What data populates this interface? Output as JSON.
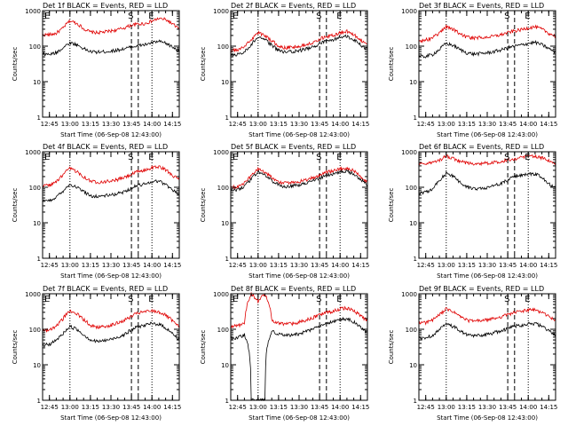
{
  "colors": {
    "events": "#000000",
    "lld": "#e00000",
    "axis": "#000000",
    "background": "#ffffff"
  },
  "chart_data": [
    {
      "type": "line",
      "title": "Det 1f BLACK = Events, RED = LLD",
      "xlabel": "Start Time (06-Sep-08 12:43:00)",
      "ylabel": "Counts/sec",
      "xticks": [
        "12:45",
        "13:00",
        "13:15",
        "13:30",
        "13:45",
        "14:00",
        "14:15"
      ],
      "yticks": [
        "1",
        "10",
        "100",
        "1000"
      ],
      "xlim_min": [
        -3,
        97
      ],
      "ylim": [
        1,
        1000
      ],
      "yscale": "log",
      "markers": [
        "E",
        "S",
        "E"
      ],
      "series": [
        {
          "name": "LLD",
          "x_min": [
            -3,
            2,
            7,
            12,
            17,
            22,
            27,
            32,
            37,
            42,
            47,
            52,
            57,
            62,
            67,
            72,
            77,
            82,
            87,
            92,
            97
          ],
          "values": [
            210,
            210,
            230,
            320,
            520,
            440,
            310,
            250,
            240,
            250,
            270,
            290,
            330,
            390,
            420,
            430,
            510,
            600,
            560,
            420,
            300
          ]
        },
        {
          "name": "Events",
          "x_min": [
            -3,
            2,
            7,
            12,
            17,
            22,
            27,
            32,
            37,
            42,
            47,
            52,
            57,
            62,
            67,
            72,
            77,
            82,
            87,
            92,
            97
          ],
          "values": [
            60,
            58,
            65,
            90,
            125,
            110,
            85,
            70,
            68,
            70,
            72,
            78,
            85,
            95,
            105,
            110,
            125,
            135,
            120,
            95,
            70
          ]
        }
      ]
    },
    {
      "type": "line",
      "title": "Det 2f BLACK = Events, RED = LLD",
      "xlabel": "Start Time (06-Sep-08 12:43:00)",
      "ylabel": "Counts/sec",
      "xticks": [
        "12:45",
        "13:00",
        "13:15",
        "13:30",
        "13:45",
        "14:00",
        "14:15"
      ],
      "yticks": [
        "1",
        "10",
        "100",
        "1000"
      ],
      "xlim_min": [
        -3,
        97
      ],
      "ylim": [
        1,
        1000
      ],
      "yscale": "log",
      "markers": [
        "E",
        "S",
        "E"
      ],
      "series": [
        {
          "name": "LLD",
          "x_min": [
            -3,
            2,
            7,
            12,
            17,
            22,
            27,
            32,
            37,
            42,
            47,
            52,
            57,
            62,
            67,
            72,
            77,
            82,
            87,
            92,
            97
          ],
          "values": [
            75,
            78,
            95,
            150,
            240,
            200,
            140,
            100,
            90,
            95,
            100,
            110,
            130,
            160,
            190,
            200,
            240,
            260,
            210,
            150,
            110
          ]
        },
        {
          "name": "Events",
          "x_min": [
            -3,
            2,
            7,
            12,
            17,
            22,
            27,
            32,
            37,
            42,
            47,
            52,
            57,
            62,
            67,
            72,
            77,
            82,
            87,
            92,
            97
          ],
          "values": [
            55,
            58,
            70,
            110,
            180,
            150,
            105,
            75,
            68,
            70,
            75,
            82,
            95,
            115,
            140,
            150,
            180,
            190,
            150,
            110,
            80
          ]
        }
      ]
    },
    {
      "type": "line",
      "title": "Det 3f BLACK = Events, RED = LLD",
      "xlabel": "Start Time (06-Sep-08 12:43:00)",
      "ylabel": "Counts/sec",
      "xticks": [
        "12:45",
        "13:00",
        "13:15",
        "13:30",
        "13:45",
        "14:00",
        "14:15"
      ],
      "yticks": [
        "1",
        "10",
        "100",
        "1000"
      ],
      "xlim_min": [
        -3,
        97
      ],
      "ylim": [
        1,
        1000
      ],
      "yscale": "log",
      "markers": [
        "S",
        "E"
      ],
      "series": [
        {
          "name": "LLD",
          "x_min": [
            -3,
            2,
            7,
            12,
            17,
            22,
            27,
            32,
            37,
            42,
            47,
            52,
            57,
            62,
            67,
            72,
            77,
            82,
            87,
            92,
            97
          ],
          "values": [
            140,
            150,
            170,
            230,
            360,
            300,
            220,
            180,
            170,
            175,
            180,
            190,
            210,
            240,
            270,
            290,
            330,
            350,
            300,
            230,
            190
          ]
        },
        {
          "name": "Events",
          "x_min": [
            -3,
            2,
            7,
            12,
            17,
            22,
            27,
            32,
            37,
            42,
            47,
            52,
            57,
            62,
            67,
            72,
            77,
            82,
            87,
            92,
            97
          ],
          "values": [
            50,
            52,
            58,
            80,
            120,
            105,
            80,
            65,
            60,
            62,
            65,
            70,
            78,
            90,
            100,
            108,
            120,
            128,
            110,
            85,
            68
          ]
        }
      ]
    },
    {
      "type": "line",
      "title": "Det 4f BLACK = Events, RED = LLD",
      "xlabel": "Start Time (06-Sep-08 12:43:00)",
      "ylabel": "Counts/sec",
      "xticks": [
        "12:45",
        "13:00",
        "13:15",
        "13:30",
        "13:45",
        "14:00",
        "14:15"
      ],
      "yticks": [
        "1",
        "10",
        "100",
        "1000"
      ],
      "xlim_min": [
        -3,
        97
      ],
      "ylim": [
        1,
        1000
      ],
      "yscale": "log",
      "markers": [
        "E",
        "S",
        "E"
      ],
      "series": [
        {
          "name": "LLD",
          "x_min": [
            -3,
            2,
            7,
            12,
            17,
            22,
            27,
            32,
            37,
            42,
            47,
            52,
            57,
            62,
            67,
            72,
            77,
            82,
            87,
            92,
            97
          ],
          "values": [
            110,
            115,
            140,
            220,
            340,
            280,
            200,
            150,
            140,
            145,
            150,
            165,
            190,
            230,
            280,
            300,
            360,
            380,
            310,
            220,
            160
          ]
        },
        {
          "name": "Events",
          "x_min": [
            -3,
            2,
            7,
            12,
            17,
            22,
            27,
            32,
            37,
            42,
            47,
            52,
            57,
            62,
            67,
            72,
            77,
            82,
            87,
            92,
            97
          ],
          "values": [
            40,
            42,
            52,
            80,
            120,
            100,
            75,
            58,
            55,
            58,
            60,
            66,
            76,
            95,
            115,
            125,
            145,
            150,
            120,
            85,
            62
          ]
        }
      ]
    },
    {
      "type": "line",
      "title": "Det 5f BLACK = Events, RED = LLD",
      "xlabel": "Start Time (06-Sep-08 12:43:00)",
      "ylabel": "Counts/sec",
      "xticks": [
        "12:45",
        "13:00",
        "13:15",
        "13:30",
        "13:45",
        "14:00",
        "14:15"
      ],
      "yticks": [
        "1",
        "10",
        "100",
        "1000"
      ],
      "xlim_min": [
        -3,
        97
      ],
      "ylim": [
        1,
        1000
      ],
      "yscale": "log",
      "markers": [
        "E",
        "S",
        "E"
      ],
      "series": [
        {
          "name": "LLD",
          "x_min": [
            -3,
            2,
            7,
            12,
            17,
            22,
            27,
            32,
            37,
            42,
            47,
            52,
            57,
            62,
            67,
            72,
            77,
            82,
            87,
            92,
            97
          ],
          "values": [
            100,
            105,
            130,
            200,
            330,
            270,
            190,
            140,
            130,
            135,
            145,
            160,
            185,
            220,
            270,
            290,
            330,
            350,
            290,
            200,
            140
          ]
        },
        {
          "name": "Events",
          "x_min": [
            -3,
            2,
            7,
            12,
            17,
            22,
            27,
            32,
            37,
            42,
            47,
            52,
            57,
            62,
            67,
            72,
            77,
            82,
            87,
            92,
            97
          ],
          "values": [
            80,
            84,
            105,
            165,
            270,
            220,
            155,
            115,
            105,
            110,
            118,
            130,
            150,
            180,
            220,
            240,
            270,
            285,
            235,
            165,
            115
          ]
        }
      ]
    },
    {
      "type": "line",
      "title": "Det 6f BLACK = Events, RED = LLD",
      "xlabel": "Start Time (06-Sep-08 12:43:00)",
      "ylabel": "Counts/sec",
      "xticks": [
        "12:45",
        "13:00",
        "13:15",
        "13:30",
        "13:45",
        "14:00",
        "14:15"
      ],
      "yticks": [
        "1",
        "10",
        "100",
        "1000"
      ],
      "xlim_min": [
        -3,
        97
      ],
      "ylim": [
        1,
        1000
      ],
      "yscale": "log",
      "markers": [
        "S",
        "E"
      ],
      "series": [
        {
          "name": "LLD",
          "x_min": [
            -3,
            2,
            7,
            12,
            17,
            22,
            27,
            32,
            37,
            42,
            47,
            52,
            57,
            62,
            67,
            72,
            77,
            82,
            87,
            92,
            97
          ],
          "values": [
            470,
            470,
            490,
            560,
            760,
            650,
            540,
            480,
            470,
            470,
            480,
            500,
            540,
            590,
            640,
            680,
            740,
            760,
            680,
            560,
            480
          ]
        },
        {
          "name": "Events",
          "x_min": [
            -3,
            2,
            7,
            12,
            17,
            22,
            27,
            32,
            37,
            42,
            47,
            52,
            57,
            62,
            67,
            72,
            77,
            82,
            87,
            92,
            97
          ],
          "values": [
            70,
            72,
            90,
            150,
            250,
            200,
            140,
            100,
            90,
            95,
            100,
            110,
            130,
            160,
            200,
            215,
            240,
            240,
            190,
            130,
            95
          ]
        }
      ]
    },
    {
      "type": "line",
      "title": "Det 7f BLACK = Events, RED = LLD",
      "xlabel": "Start Time (06-Sep-08 12:43:00)",
      "ylabel": "Counts/sec",
      "xticks": [
        "12:45",
        "13:00",
        "13:15",
        "13:30",
        "13:45",
        "14:00",
        "14:15"
      ],
      "yticks": [
        "1",
        "10",
        "100",
        "1000"
      ],
      "xlim_min": [
        -3,
        97
      ],
      "ylim": [
        1,
        1000
      ],
      "yscale": "log",
      "markers": [
        "E",
        "S",
        "E"
      ],
      "series": [
        {
          "name": "LLD",
          "x_min": [
            -3,
            2,
            7,
            12,
            17,
            22,
            27,
            32,
            37,
            42,
            47,
            52,
            57,
            62,
            67,
            72,
            77,
            82,
            87,
            92,
            97
          ],
          "values": [
            90,
            95,
            120,
            200,
            330,
            270,
            190,
            130,
            115,
            120,
            130,
            150,
            180,
            230,
            290,
            310,
            330,
            310,
            250,
            170,
            110
          ]
        },
        {
          "name": "Events",
          "x_min": [
            -3,
            2,
            7,
            12,
            17,
            22,
            27,
            32,
            37,
            42,
            47,
            52,
            57,
            62,
            67,
            72,
            77,
            82,
            87,
            92,
            97
          ],
          "values": [
            35,
            38,
            48,
            75,
            120,
            100,
            70,
            50,
            45,
            48,
            52,
            60,
            72,
            95,
            120,
            130,
            145,
            140,
            110,
            75,
            50
          ]
        }
      ]
    },
    {
      "type": "line",
      "title": "Det 8f BLACK = Events, RED = LLD",
      "xlabel": "Start Time (06-Sep-08 12:43:00)",
      "ylabel": "Counts/sec",
      "xticks": [
        "12:45",
        "13:00",
        "13:15",
        "13:30",
        "13:45",
        "14:00",
        "14:15"
      ],
      "yticks": [
        "1",
        "10",
        "100",
        "1000"
      ],
      "xlim_min": [
        -3,
        97
      ],
      "ylim": [
        1,
        1000
      ],
      "yscale": "log",
      "markers": [
        "E",
        "S",
        "E"
      ],
      "series": [
        {
          "name": "LLD",
          "x_min": [
            -3,
            2,
            7,
            12,
            17,
            22,
            27,
            32,
            37,
            42,
            47,
            52,
            57,
            62,
            67,
            72,
            77,
            82,
            87,
            92,
            97
          ],
          "values": [
            120,
            125,
            140,
            1000,
            600,
            1000,
            180,
            150,
            140,
            145,
            160,
            180,
            210,
            250,
            300,
            320,
            380,
            400,
            330,
            240,
            170
          ]
        },
        {
          "name": "Events",
          "x_min": [
            -3,
            2,
            7,
            12,
            17,
            22,
            27,
            32,
            37,
            42,
            47,
            52,
            57,
            62,
            67,
            72,
            77,
            82,
            87,
            92,
            97
          ],
          "values": [
            55,
            58,
            70,
            1,
            1,
            1,
            90,
            72,
            68,
            70,
            75,
            85,
            100,
            120,
            150,
            160,
            190,
            200,
            160,
            110,
            80
          ]
        }
      ]
    },
    {
      "type": "line",
      "title": "Det 9f BLACK = Events, RED = LLD",
      "xlabel": "Start Time (06-Sep-08 12:43:00)",
      "ylabel": "Counts/sec",
      "xticks": [
        "12:45",
        "13:00",
        "13:15",
        "13:30",
        "13:45",
        "14:00",
        "14:15"
      ],
      "yticks": [
        "1",
        "10",
        "100",
        "1000"
      ],
      "xlim_min": [
        -3,
        97
      ],
      "ylim": [
        1,
        1000
      ],
      "yscale": "log",
      "markers": [
        "S",
        "E"
      ],
      "series": [
        {
          "name": "LLD",
          "x_min": [
            -3,
            2,
            7,
            12,
            17,
            22,
            27,
            32,
            37,
            42,
            47,
            52,
            57,
            62,
            67,
            72,
            77,
            82,
            87,
            92,
            97
          ],
          "values": [
            150,
            155,
            180,
            250,
            370,
            310,
            230,
            180,
            170,
            175,
            185,
            200,
            225,
            260,
            300,
            320,
            350,
            350,
            300,
            230,
            180
          ]
        },
        {
          "name": "Events",
          "x_min": [
            -3,
            2,
            7,
            12,
            17,
            22,
            27,
            32,
            37,
            42,
            47,
            52,
            57,
            62,
            67,
            72,
            77,
            82,
            87,
            92,
            97
          ],
          "values": [
            55,
            58,
            68,
            95,
            140,
            120,
            90,
            70,
            65,
            68,
            72,
            80,
            90,
            105,
            125,
            130,
            145,
            145,
            120,
            90,
            70
          ]
        }
      ]
    }
  ]
}
